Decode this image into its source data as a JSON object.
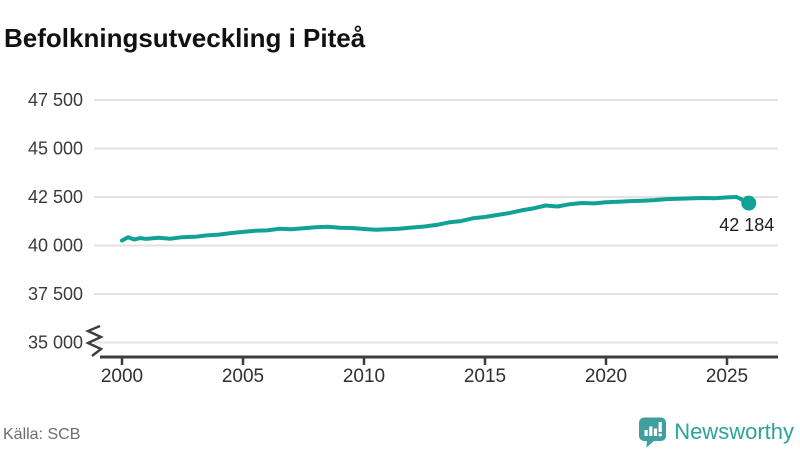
{
  "header": {
    "title": "Befolkningsutveckling i Piteå"
  },
  "footer": {
    "source_label": "Källa: SCB",
    "brand_name": "Newsworthy"
  },
  "colors": {
    "series_line": "#11a295",
    "marker": "#11a295",
    "gridline": "#e2e2e2",
    "axis": "#3d3d3d",
    "tick_text": "#3a3a3a",
    "end_label_text": "#1f1f1f",
    "title_text": "#111111",
    "source_text": "#6d6d6d",
    "brand_text": "#2aa49c",
    "badge_fill": "#3f9f9f",
    "badge_glyph": "#ffffff"
  },
  "chart_data": {
    "type": "line",
    "title": "Befolkningsutveckling i Piteå",
    "series_name": "Befolkning i Piteå",
    "grid": "horizontal",
    "legend_position": "none",
    "axis_break_at_bottom": true,
    "ylim": [
      35000,
      48750
    ],
    "xlim": [
      1998.8,
      2027.2
    ],
    "y_ticks": [
      {
        "value": 47500,
        "label": "47 500"
      },
      {
        "value": 45000,
        "label": "45 000"
      },
      {
        "value": 42500,
        "label": "42 500"
      },
      {
        "value": 40000,
        "label": "40 000"
      },
      {
        "value": 37500,
        "label": "37 500"
      },
      {
        "value": 35000,
        "label": "35 000"
      }
    ],
    "x_ticks": [
      {
        "value": 2000,
        "label": "2000"
      },
      {
        "value": 2005,
        "label": "2005"
      },
      {
        "value": 2010,
        "label": "2010"
      },
      {
        "value": 2015,
        "label": "2015"
      },
      {
        "value": 2020,
        "label": "2020"
      },
      {
        "value": 2025,
        "label": "2025"
      }
    ],
    "x": [
      2000.0,
      2000.25,
      2000.5,
      2000.75,
      2001.0,
      2001.5,
      2002.0,
      2002.5,
      2003.0,
      2003.5,
      2004.0,
      2004.5,
      2005.0,
      2005.5,
      2006.0,
      2006.5,
      2007.0,
      2007.5,
      2008.0,
      2008.5,
      2009.0,
      2009.5,
      2010.0,
      2010.5,
      2011.0,
      2011.5,
      2012.0,
      2012.5,
      2013.0,
      2013.5,
      2014.0,
      2014.5,
      2015.0,
      2015.5,
      2016.0,
      2016.5,
      2017.0,
      2017.5,
      2018.0,
      2018.5,
      2019.0,
      2019.5,
      2020.0,
      2020.5,
      2021.0,
      2021.5,
      2022.0,
      2022.5,
      2023.0,
      2023.5,
      2024.0,
      2024.5,
      2025.0,
      2025.4,
      2025.9
    ],
    "values": [
      40260,
      40430,
      40310,
      40380,
      40340,
      40400,
      40350,
      40430,
      40450,
      40520,
      40560,
      40640,
      40700,
      40760,
      40780,
      40860,
      40840,
      40890,
      40940,
      40970,
      40920,
      40900,
      40850,
      40810,
      40840,
      40870,
      40930,
      40980,
      41060,
      41190,
      41260,
      41400,
      41470,
      41570,
      41670,
      41810,
      41910,
      42060,
      42010,
      42130,
      42190,
      42170,
      42230,
      42260,
      42290,
      42310,
      42340,
      42390,
      42410,
      42430,
      42450,
      42440,
      42480,
      42500,
      42184
    ],
    "end_value": 42184,
    "end_label": "42 184"
  }
}
